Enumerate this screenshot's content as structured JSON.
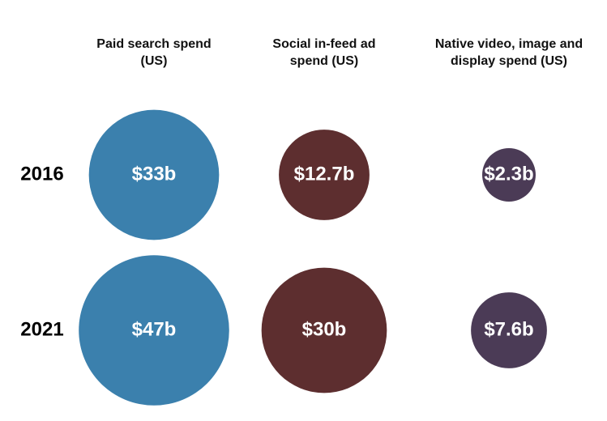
{
  "chart_data": {
    "type": "bubble",
    "categories": [
      "Paid search spend (US)",
      "Social in-feed ad spend (US)",
      "Native video, image and display spend (US)"
    ],
    "colors": [
      "#3b80ad",
      "#5d2e2f",
      "#4b3b56"
    ],
    "series": [
      {
        "name": "2016",
        "values": [
          33,
          12.7,
          2.3
        ],
        "value_labels": [
          "$33b",
          "$12.7b",
          "$2.3b"
        ]
      },
      {
        "name": "2021",
        "values": [
          47,
          30,
          7.6
        ],
        "value_labels": [
          "$47b",
          "$30b",
          "$7.6b"
        ]
      }
    ]
  }
}
